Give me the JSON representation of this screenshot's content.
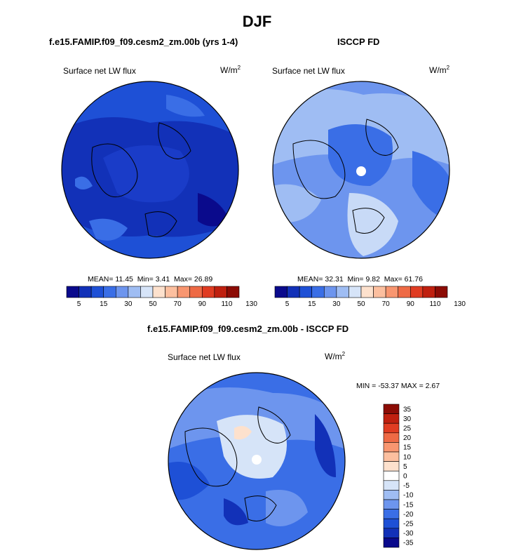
{
  "title": "DJF",
  "panels": [
    {
      "id": "model",
      "subtitle": "f.e15.FAMIP.f09_f09.cesm2_zm.00b (yrs 1-4)",
      "variable": "Surface net LW flux",
      "units_base": "W/m",
      "units_exp": "2",
      "stats": {
        "mean_label": "MEAN=",
        "mean": "11.45",
        "min_label": "Min=",
        "min": "3.41",
        "max_label": "Max=",
        "max": "26.89"
      }
    },
    {
      "id": "obs",
      "subtitle": "ISCCP FD",
      "variable": "Surface net LW flux",
      "units_base": "W/m",
      "units_exp": "2",
      "stats": {
        "mean_label": "MEAN=",
        "mean": "32.31",
        "min_label": "Min=",
        "min": "9.82",
        "max_label": "Max=",
        "max": "61.76"
      }
    },
    {
      "id": "diff",
      "subtitle": "f.e15.FAMIP.f09_f09.cesm2_zm.00b - ISCCP FD",
      "variable": "Surface net LW flux",
      "units_base": "W/m",
      "units_exp": "2",
      "minmax": "MIN = -53.37 MAX =   2.67"
    }
  ],
  "colorbar_main": {
    "labels": [
      "5",
      "15",
      "30",
      "50",
      "70",
      "90",
      "110",
      "130"
    ],
    "colors": [
      "#0a0a8c",
      "#1231b8",
      "#1e50d6",
      "#3a6ee6",
      "#6d95ee",
      "#9fbdf3",
      "#d6e4f8",
      "#fde1cd",
      "#fcbf9f",
      "#f89670",
      "#ee6a45",
      "#e03c22",
      "#bf200f",
      "#8c0c05"
    ]
  },
  "colorbar_diff": {
    "labels": [
      "35",
      "30",
      "25",
      "20",
      "15",
      "10",
      "5",
      "0",
      "-5",
      "-10",
      "-15",
      "-20",
      "-25",
      "-30",
      "-35"
    ],
    "colors": [
      "#8c0c05",
      "#bf200f",
      "#e03c22",
      "#ee6a45",
      "#f89670",
      "#fcbf9f",
      "#fde1cd",
      "#ffffff",
      "#d6e4f8",
      "#9fbdf3",
      "#6d95ee",
      "#3a6ee6",
      "#1e50d6",
      "#1231b8",
      "#0a0a8c"
    ]
  },
  "chart_data": [
    {
      "type": "heatmap",
      "title": "f.e15.FAMIP.f09_f09.cesm2_zm.00b (yrs 1-4)",
      "subtitle": "Surface net LW flux",
      "units": "W/m2",
      "projection": "polar stereographic (north)",
      "mean": 11.45,
      "min": 3.41,
      "max": 26.89,
      "levels": [
        5,
        10,
        15,
        20,
        30,
        40,
        50,
        60,
        70,
        80,
        90,
        100,
        110,
        120,
        130
      ]
    },
    {
      "type": "heatmap",
      "title": "ISCCP FD",
      "subtitle": "Surface net LW flux",
      "units": "W/m2",
      "projection": "polar stereographic (north)",
      "mean": 32.31,
      "min": 9.82,
      "max": 61.76,
      "levels": [
        5,
        10,
        15,
        20,
        30,
        40,
        50,
        60,
        70,
        80,
        90,
        100,
        110,
        120,
        130
      ]
    },
    {
      "type": "heatmap",
      "title": "f.e15.FAMIP.f09_f09.cesm2_zm.00b - ISCCP FD",
      "subtitle": "Surface net LW flux",
      "units": "W/m2",
      "projection": "polar stereographic (north)",
      "min": -53.37,
      "max": 2.67,
      "levels": [
        -35,
        -30,
        -25,
        -20,
        -15,
        -10,
        -5,
        0,
        5,
        10,
        15,
        20,
        25,
        30,
        35
      ]
    }
  ]
}
